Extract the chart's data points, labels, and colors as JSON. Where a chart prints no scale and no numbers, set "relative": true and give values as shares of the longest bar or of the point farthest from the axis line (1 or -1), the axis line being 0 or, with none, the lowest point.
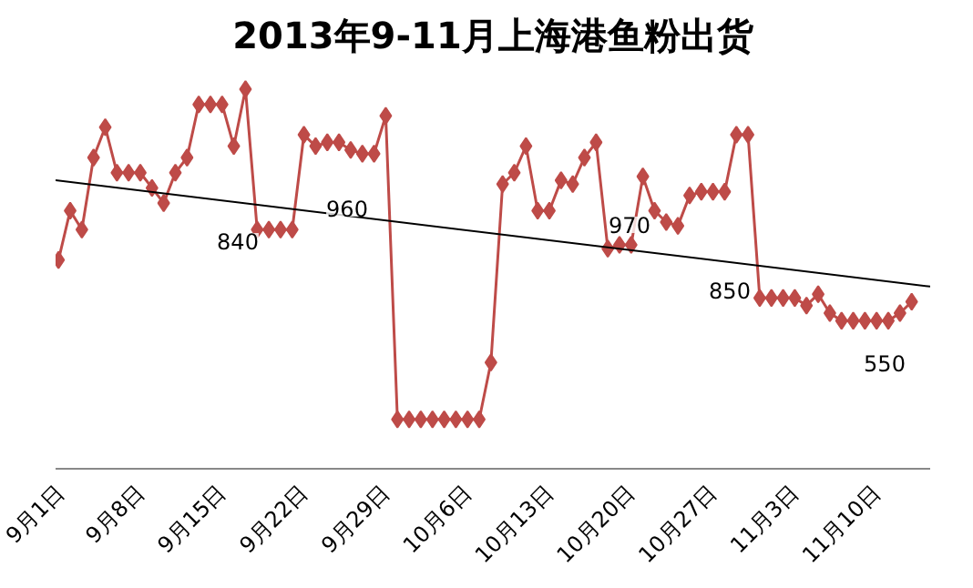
{
  "chart_data": {
    "type": "line",
    "title": "2013年9-11月上海港鱼粉出货",
    "relative": true,
    "marker": "diamond",
    "grid": false,
    "xlim": [
      "2013-08-31T18:00",
      "2013-11-14T14:00"
    ],
    "xticks": [
      {
        "value": "2013-09-01",
        "label": "9月1日"
      },
      {
        "value": "2013-09-08",
        "label": "9月8日"
      },
      {
        "value": "2013-09-15",
        "label": "9月15日"
      },
      {
        "value": "2013-09-22",
        "label": "9月22日"
      },
      {
        "value": "2013-09-29",
        "label": "9月29日"
      },
      {
        "value": "2013-10-06",
        "label": "10月6日"
      },
      {
        "value": "2013-10-13",
        "label": "10月13日"
      },
      {
        "value": "2013-10-20",
        "label": "10月20日"
      },
      {
        "value": "2013-10-27",
        "label": "10月27日"
      },
      {
        "value": "2013-11-03",
        "label": "11月3日"
      },
      {
        "value": "2013-11-10",
        "label": "11月10日"
      }
    ],
    "series": [
      {
        "color": "#be4b48",
        "x": [
          "2013-09-01",
          "2013-09-02",
          "2013-09-03",
          "2013-09-04",
          "2013-09-05",
          "2013-09-06",
          "2013-09-07",
          "2013-09-08",
          "2013-09-09",
          "2013-09-10",
          "2013-09-11",
          "2013-09-12",
          "2013-09-13",
          "2013-09-14",
          "2013-09-15",
          "2013-09-16",
          "2013-09-17",
          "2013-09-18",
          "2013-09-19",
          "2013-09-20",
          "2013-09-21",
          "2013-09-22",
          "2013-09-23",
          "2013-09-24",
          "2013-09-25",
          "2013-09-26",
          "2013-09-27",
          "2013-09-28",
          "2013-09-29",
          "2013-09-30",
          "2013-10-01",
          "2013-10-02",
          "2013-10-03",
          "2013-10-04",
          "2013-10-05",
          "2013-10-06",
          "2013-10-07",
          "2013-10-08",
          "2013-10-09",
          "2013-10-10",
          "2013-10-11",
          "2013-10-12",
          "2013-10-13",
          "2013-10-14",
          "2013-10-15",
          "2013-10-16",
          "2013-10-17",
          "2013-10-18",
          "2013-10-19",
          "2013-10-20",
          "2013-10-21",
          "2013-10-22",
          "2013-10-23",
          "2013-10-24",
          "2013-10-25",
          "2013-10-26",
          "2013-10-27",
          "2013-10-28",
          "2013-10-29",
          "2013-10-30",
          "2013-10-31",
          "2013-11-01",
          "2013-11-02",
          "2013-11-03",
          "2013-11-04",
          "2013-11-05",
          "2013-11-06",
          "2013-11-07",
          "2013-11-08",
          "2013-11-09",
          "2013-11-10",
          "2013-11-11",
          "2013-11-12",
          "2013-11-13"
        ],
        "values": [
          0.55,
          0.68,
          0.63,
          0.82,
          0.9,
          0.78,
          0.78,
          0.78,
          0.74,
          0.7,
          0.78,
          0.82,
          0.96,
          0.96,
          0.96,
          0.85,
          1.0,
          0.63,
          0.63,
          0.63,
          0.63,
          0.88,
          0.85,
          0.86,
          0.86,
          0.84,
          0.83,
          0.83,
          0.93,
          0.13,
          0.13,
          0.13,
          0.13,
          0.13,
          0.13,
          0.13,
          0.13,
          0.28,
          0.75,
          0.78,
          0.85,
          0.68,
          0.68,
          0.76,
          0.75,
          0.82,
          0.86,
          0.58,
          0.59,
          0.59,
          0.77,
          0.68,
          0.65,
          0.64,
          0.72,
          0.73,
          0.73,
          0.73,
          0.88,
          0.88,
          0.45,
          0.45,
          0.45,
          0.45,
          0.43,
          0.46,
          0.41,
          0.39,
          0.39,
          0.39,
          0.39,
          0.39,
          0.41,
          0.44
        ]
      },
      {
        "type": "line",
        "color": "#000000",
        "marker": "none",
        "x": [
          "2013-08-31T18:00",
          "2013-11-14T14:00"
        ],
        "values": [
          0.76,
          0.48
        ]
      }
    ],
    "annotations": [
      "840",
      "960",
      "970",
      "850",
      "550"
    ]
  }
}
